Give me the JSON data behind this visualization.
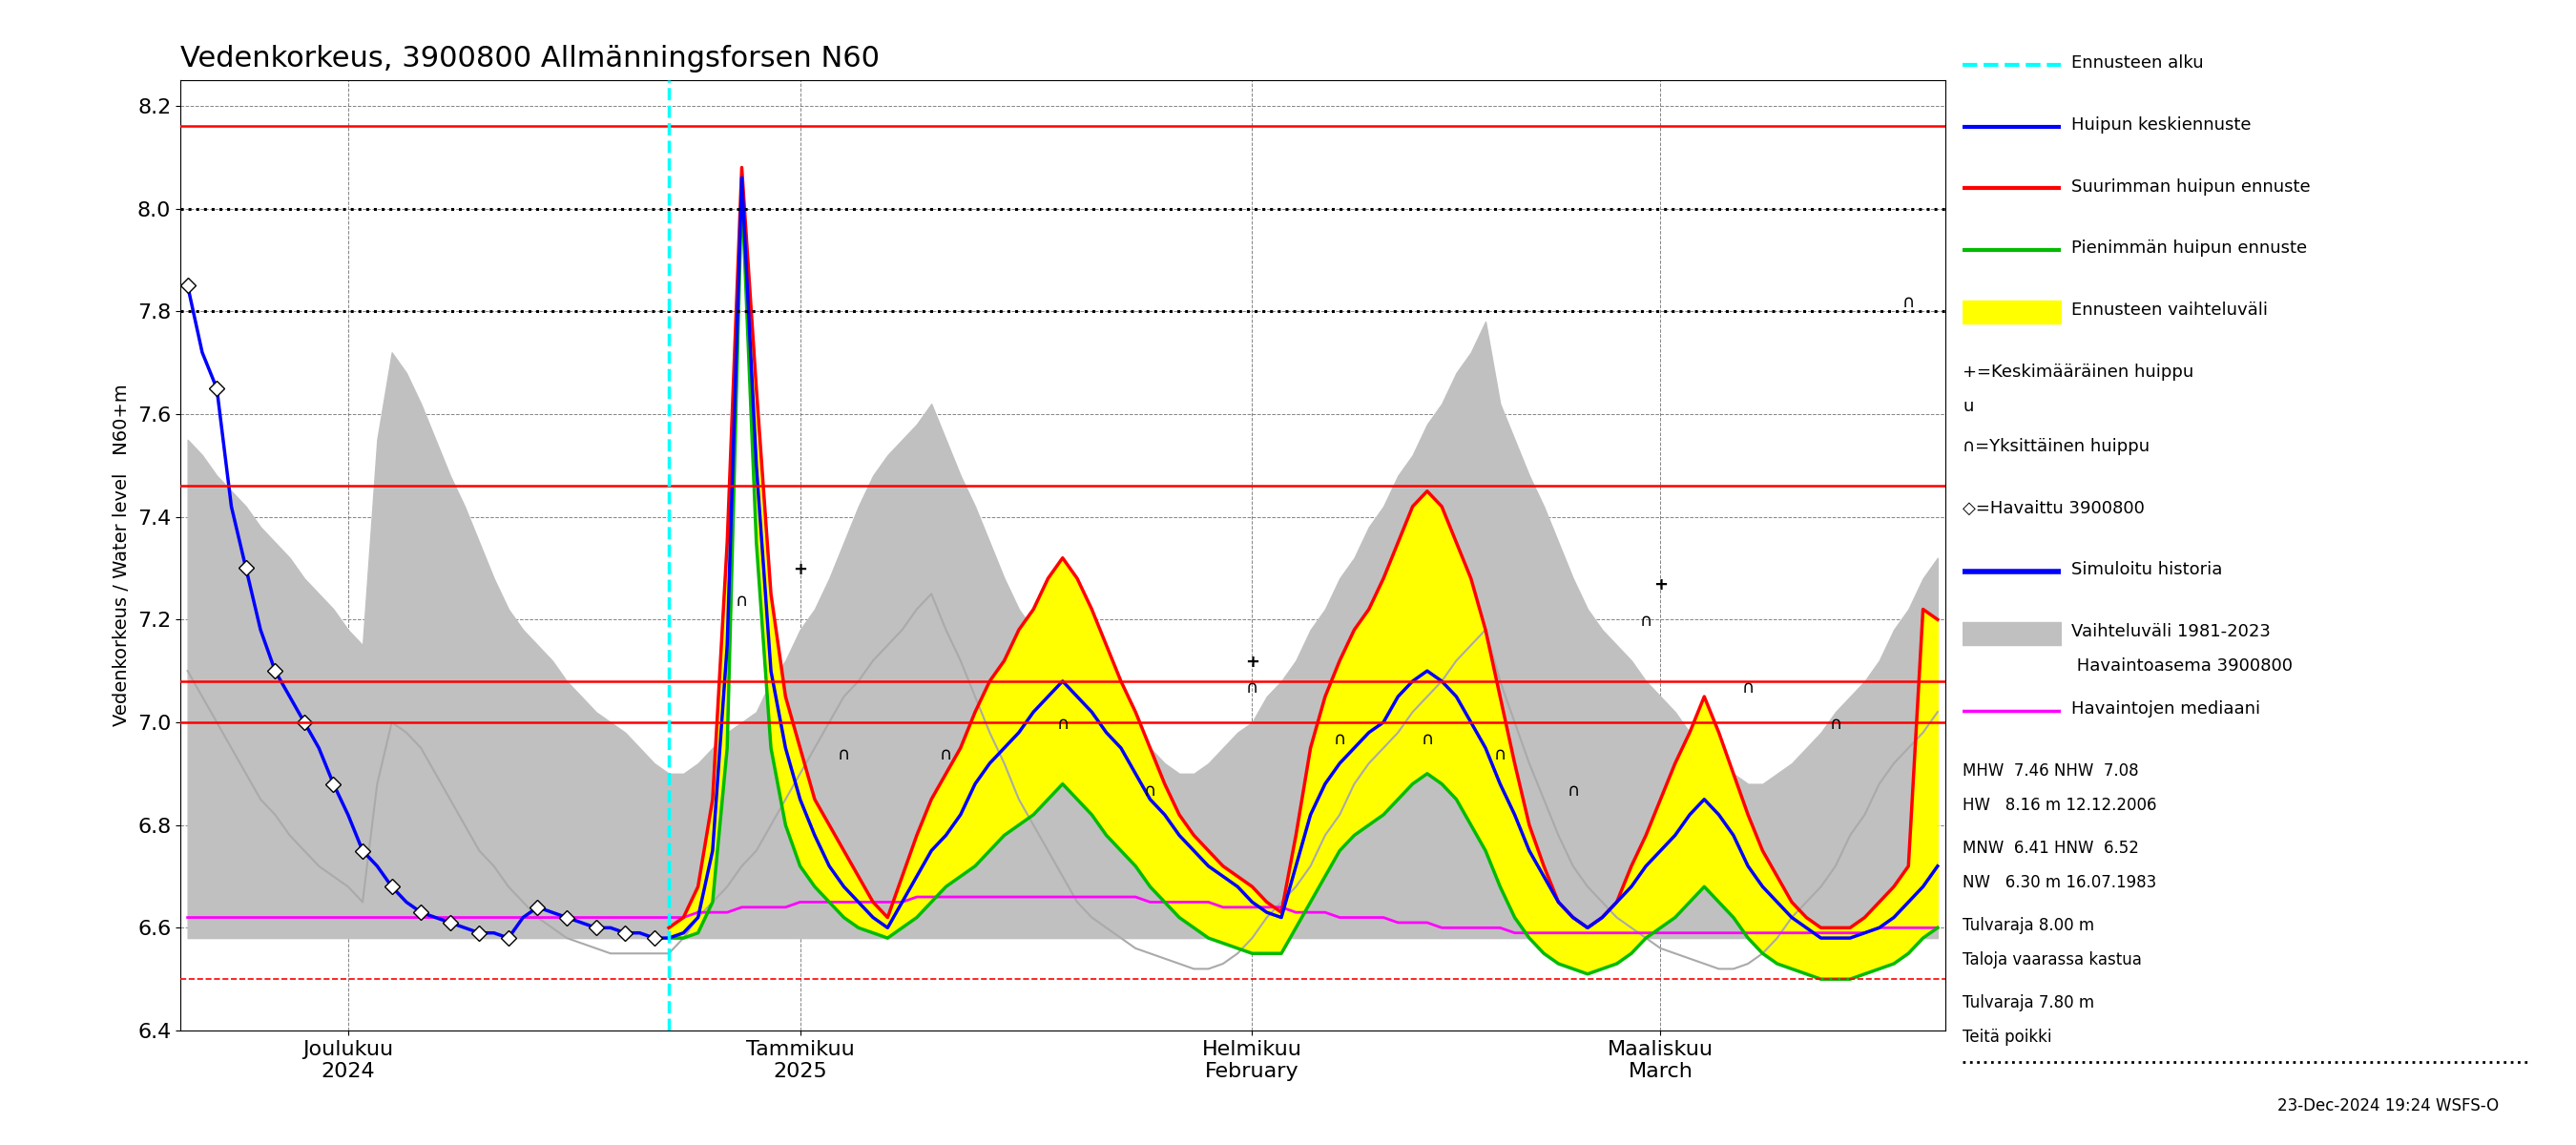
{
  "title": "Vedenkorkeus, 3900800 Allmänningsforsen N60",
  "ylabel_top": "N60+m",
  "ylabel_main": "Vedenkorkeus / Water level",
  "ylim": [
    6.4,
    8.25
  ],
  "yticks": [
    6.4,
    6.6,
    6.8,
    7.0,
    7.2,
    7.4,
    7.6,
    7.8,
    8.0,
    8.2
  ],
  "hlines_red_solid": [
    8.16,
    7.46,
    7.08,
    7.0
  ],
  "hline_red_dashed": 6.5,
  "hlines_dotted_black": [
    8.0,
    7.8
  ],
  "xlabel_ticks_labels": [
    "Joulukuu\n2024",
    "Tammikuu\n2025",
    "Helmikuu\nFebruary",
    "Maaliskuu\nMarch"
  ],
  "date_label": "23-Dec-2024 19:24 WSFS-O",
  "bg_color": "#ffffff",
  "colors": {
    "blue_line": "#0000ff",
    "red_line": "#ff0000",
    "green_line": "#00bb00",
    "magenta_line": "#ff00ff",
    "yellow_fill": "#ffff00",
    "gray_fill": "#c0c0c0",
    "gray_sim_line": "#aaaaaa",
    "cyan_dashed": "#00ffff",
    "black_dotted": "#000000",
    "red_hline": "#ff0000",
    "red_dashed_hline": "#ff0000"
  }
}
